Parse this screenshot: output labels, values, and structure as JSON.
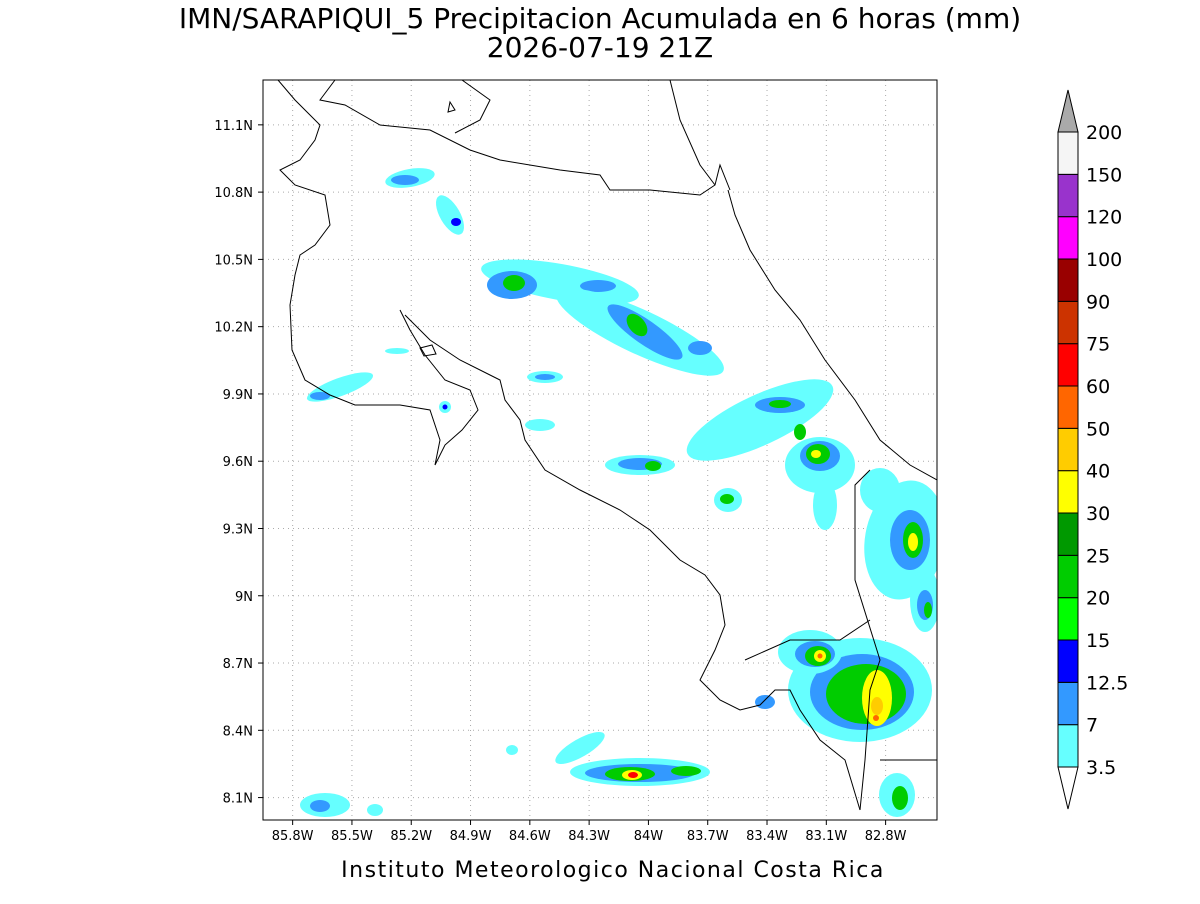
{
  "title": "IMN/SARAPIQUI_5 Precipitacion Acumulada en 6 horas (mm)",
  "subtitle": "2026-07-19 21Z",
  "footer": "Instituto Meteorologico Nacional Costa Rica",
  "map": {
    "lon_range": [
      -85.95,
      -82.54
    ],
    "lat_range": [
      8.0,
      11.3
    ],
    "lon_ticks": [
      {
        "value": -85.8,
        "label": "85.8W"
      },
      {
        "value": -85.5,
        "label": "85.5W"
      },
      {
        "value": -85.2,
        "label": "85.2W"
      },
      {
        "value": -84.9,
        "label": "84.9W"
      },
      {
        "value": -84.6,
        "label": "84.6W"
      },
      {
        "value": -84.3,
        "label": "84.3W"
      },
      {
        "value": -84.0,
        "label": "84W"
      },
      {
        "value": -83.7,
        "label": "83.7W"
      },
      {
        "value": -83.4,
        "label": "83.4W"
      },
      {
        "value": -83.1,
        "label": "83.1W"
      },
      {
        "value": -82.8,
        "label": "82.8W"
      }
    ],
    "lat_ticks": [
      {
        "value": 8.1,
        "label": "8.1N"
      },
      {
        "value": 8.4,
        "label": "8.4N"
      },
      {
        "value": 8.7,
        "label": "8.7N"
      },
      {
        "value": 9.0,
        "label": "9N"
      },
      {
        "value": 9.3,
        "label": "9.3N"
      },
      {
        "value": 9.6,
        "label": "9.6N"
      },
      {
        "value": 9.9,
        "label": "9.9N"
      },
      {
        "value": 10.2,
        "label": "10.2N"
      },
      {
        "value": 10.5,
        "label": "10.5N"
      },
      {
        "value": 10.8,
        "label": "10.8N"
      },
      {
        "value": 11.1,
        "label": "11.1N"
      }
    ]
  },
  "colorbar": {
    "levels": [
      3.5,
      7,
      12.5,
      15,
      20,
      25,
      30,
      40,
      50,
      60,
      75,
      90,
      100,
      120,
      150,
      200
    ],
    "colors": [
      "#66ffff",
      "#3399ff",
      "#0000ff",
      "#00ff00",
      "#00cc00",
      "#009900",
      "#ffff00",
      "#ffcc00",
      "#ff6600",
      "#ff0000",
      "#cc3300",
      "#990000",
      "#ff00ff",
      "#9933cc",
      "#f5f5f5"
    ],
    "under_color": "#ffffff",
    "over_color": "#aaaaaa"
  }
}
